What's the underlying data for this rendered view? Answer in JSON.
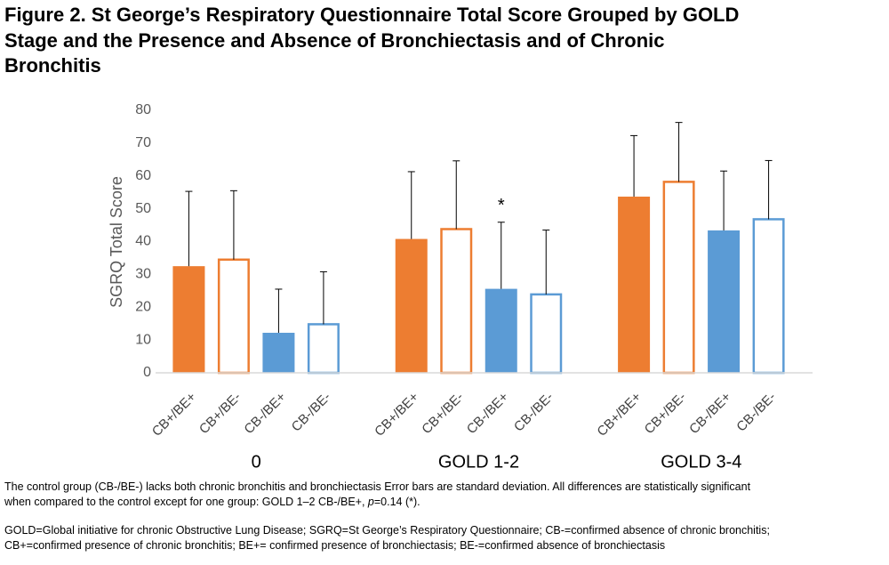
{
  "chart_data": {
    "type": "bar",
    "title_lines": [
      "Figure 2. St George’s Respiratory Questionnaire Total Score Grouped by GOLD",
      "Stage and the Presence and Absence of Bronchiectasis and of Chronic",
      "Bronchitis"
    ],
    "y_label": "SGRQ Total Score",
    "categories": [
      "0",
      "GOLD 1-2",
      "GOLD 3-4"
    ],
    "series": [
      {
        "name": "CB+/BE+",
        "color": "#ed7d31",
        "style": "filled",
        "values": [
          32.5,
          40.8,
          53.7
        ],
        "errors": [
          22.8,
          20.5,
          18.6
        ]
      },
      {
        "name": "CB+/BE-",
        "color": "#ed7d31",
        "style": "outline",
        "values": [
          34.5,
          43.8,
          58.2
        ],
        "errors": [
          21.0,
          20.8,
          18.1
        ]
      },
      {
        "name": "CB-/BE+",
        "color": "#5b9bd5",
        "style": "filled",
        "values": [
          12.2,
          25.6,
          43.4
        ],
        "errors": [
          13.3,
          20.3,
          18.1
        ]
      },
      {
        "name": "CB-/BE-",
        "color": "#5b9bd5",
        "style": "outline",
        "values": [
          14.8,
          23.9,
          46.8
        ],
        "errors": [
          16.0,
          19.6,
          17.9
        ]
      }
    ],
    "annotations": [
      {
        "text": "*",
        "series": 2,
        "category": 1
      }
    ],
    "ylim": [
      0,
      80
    ],
    "yticks": [
      0,
      10,
      20,
      30,
      40,
      50,
      60,
      70,
      80
    ],
    "grid": false,
    "notes": [
      [
        "The control group (CB-/BE-) lacks both chronic bronchitis and bronchiectasis Error bars are standard deviation.  All differences are statistically significant"
      ],
      [
        "when compared to the control except for one group: GOLD 1–2 CB-/BE+, ",
        "p",
        "=0.14 (*)."
      ],
      [
        "GOLD=Global initiative for chronic Obstructive Lung Disease; SGRQ=St George’s Respiratory Questionnaire; CB-=confirmed absence of chronic bronchitis;"
      ],
      [
        "CB+=confirmed presence of chronic bronchitis; BE+= confirmed presence of bronchiectasis; BE-=confirmed absence of bronchiectasis"
      ]
    ]
  }
}
